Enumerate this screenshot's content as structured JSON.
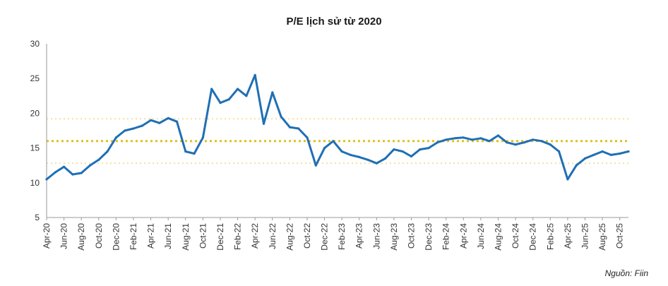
{
  "chart_data": {
    "type": "line",
    "title": "P/E lịch sử từ 2020",
    "source": "Nguồn: Fiin",
    "xlabel": "",
    "ylabel": "",
    "ylim": [
      5,
      30
    ],
    "yticks": [
      5,
      10,
      15,
      20,
      25,
      30
    ],
    "xlim": [
      "2020-04",
      "2025-11"
    ],
    "xticks": [
      "Apr-20",
      "Jun-20",
      "Aug-20",
      "Oct-20",
      "Dec-20",
      "Feb-21",
      "Apr-21",
      "Jun-21",
      "Aug-21",
      "Oct-21",
      "Dec-21",
      "Feb-22",
      "Apr-22",
      "Jun-22",
      "Aug-22",
      "Oct-22",
      "Dec-22",
      "Feb-23",
      "Apr-23",
      "Jun-23",
      "Aug-23",
      "Oct-23",
      "Dec-23",
      "Feb-24",
      "Apr-24",
      "Jun-24",
      "Aug-24",
      "Oct-24",
      "Dec-24",
      "Feb-25",
      "Apr-25",
      "Jun-25",
      "Aug-25",
      "Oct-25"
    ],
    "grid": false,
    "legend": "none",
    "series": [
      {
        "color": "#1f6fb5",
        "x": [
          "2020-04",
          "2020-05",
          "2020-06",
          "2020-07",
          "2020-08",
          "2020-09",
          "2020-10",
          "2020-11",
          "2020-12",
          "2021-01",
          "2021-02",
          "2021-03",
          "2021-04",
          "2021-05",
          "2021-06",
          "2021-07",
          "2021-08",
          "2021-09",
          "2021-10",
          "2021-11",
          "2021-12",
          "2022-01",
          "2022-02",
          "2022-03",
          "2022-04",
          "2022-05",
          "2022-06",
          "2022-07",
          "2022-08",
          "2022-09",
          "2022-10",
          "2022-11",
          "2022-12",
          "2023-01",
          "2023-02",
          "2023-03",
          "2023-04",
          "2023-05",
          "2023-06",
          "2023-07",
          "2023-08",
          "2023-09",
          "2023-10",
          "2023-11",
          "2023-12",
          "2024-01",
          "2024-02",
          "2024-03",
          "2024-04",
          "2024-05",
          "2024-06",
          "2024-07",
          "2024-08",
          "2024-09",
          "2024-10",
          "2024-11",
          "2024-12",
          "2025-01",
          "2025-02",
          "2025-03",
          "2025-04",
          "2025-05",
          "2025-06",
          "2025-07",
          "2025-08",
          "2025-09",
          "2025-10",
          "2025-11"
        ],
        "values": [
          10.5,
          11.5,
          12.3,
          11.2,
          11.4,
          12.5,
          13.3,
          14.5,
          16.5,
          17.5,
          17.8,
          18.2,
          19.0,
          18.6,
          19.3,
          18.8,
          14.5,
          14.2,
          16.5,
          23.5,
          21.5,
          22.0,
          23.5,
          22.5,
          25.5,
          18.5,
          23.0,
          19.5,
          18.0,
          17.8,
          16.5,
          12.5,
          15.0,
          16.0,
          14.5,
          14.0,
          13.7,
          13.3,
          12.8,
          13.5,
          14.8,
          14.5,
          13.8,
          14.8,
          15.0,
          15.8,
          16.2,
          16.4,
          16.5,
          16.2,
          16.4,
          16.0,
          16.8,
          15.8,
          15.5,
          15.8,
          16.2,
          16.0,
          15.5,
          14.5,
          10.5,
          12.5,
          13.5,
          14.0,
          14.5,
          14.0,
          14.2,
          14.5
        ]
      }
    ],
    "reference_lines": [
      {
        "role": "mean",
        "value": 16.0,
        "color": "#e0c020",
        "style": "dotted-bold"
      },
      {
        "role": "upper-band",
        "value": 19.2,
        "color": "#f2e29a",
        "style": "dotted"
      },
      {
        "role": "lower-band",
        "value": 12.8,
        "color": "#f2e29a",
        "style": "dotted"
      }
    ]
  }
}
